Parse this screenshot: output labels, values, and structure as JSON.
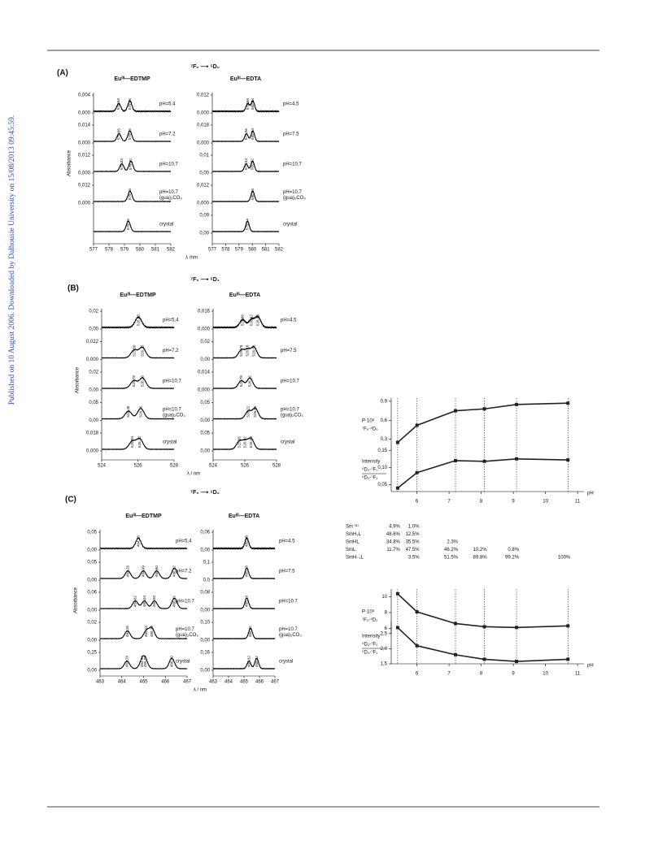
{
  "sidebar": "Published on 10 August 2006. Downloaded by Dalhousie University on 15/08/2013 09:45:59.",
  "panels": [
    {
      "label": "(A)",
      "transition": "⁷F₀ ⟶ ⁵D₀",
      "ylabel": "Absorbance",
      "xlabel": "λ /nm",
      "xticks": [
        577,
        578,
        579,
        580,
        581,
        582
      ],
      "left": {
        "title": "Euᴵᴵᴵ—EDTMP",
        "rows": [
          {
            "label": "pH=5.4",
            "yticks": [
              "0,004",
              "0,000"
            ],
            "peaks": [
              "578.63",
              "579.35"
            ]
          },
          {
            "label": "pH=7.2",
            "yticks": [
              "0,014",
              "0,000"
            ],
            "peaks": [
              "578.65",
              "579.35"
            ]
          },
          {
            "label": "pH=10.7",
            "yticks": [
              "0,012",
              "0,000"
            ],
            "peaks": [
              "578.83",
              "579.42"
            ]
          },
          {
            "label": "pH=10.7 (gua)₂CO₃",
            "yticks": [
              "0,012",
              "0,000"
            ],
            "peaks": [
              "579.36"
            ]
          },
          {
            "label": "crystal",
            "yticks": [],
            "peaks": [
              "579.25"
            ]
          }
        ]
      },
      "right": {
        "title": "Euᴵᴵᴵ—EDTA",
        "rows": [
          {
            "label": "pH=4.5",
            "yticks": [
              "0,012",
              "0,000"
            ],
            "peaks": [
              "579.66",
              "580.04"
            ]
          },
          {
            "label": "pH=7.5",
            "yticks": [
              "0,018",
              "0,000"
            ],
            "peaks": [
              "579.56",
              "580.04"
            ]
          },
          {
            "label": "pH=10.7",
            "yticks": [
              "0,01",
              "0,00"
            ],
            "peaks": [
              "579.54",
              "580.02"
            ]
          },
          {
            "label": "pH=10.7 (gua)₂CO₃",
            "yticks": [
              "0,012",
              "0,000"
            ],
            "peaks": [
              "580.03"
            ]
          },
          {
            "label": "crystal",
            "yticks": [
              "0,09",
              "0,00"
            ],
            "peaks": [
              "579.64"
            ]
          }
        ]
      }
    },
    {
      "label": "(B)",
      "transition": "⁷F₀ ⟶ ⁵D₁",
      "ylabel": "Absorbance",
      "xlabel": "λ / nm",
      "xticks": [
        524,
        526,
        528
      ],
      "left": {
        "title": "Euᴵᴵᴵ—EDTMP",
        "rows": [
          {
            "label": "pH=5.4",
            "yticks": [
              "0,02",
              "0,00"
            ],
            "peaks": [
              "526.03"
            ]
          },
          {
            "label": "pH=7.2",
            "yticks": [
              "0,022",
              "0,000"
            ],
            "peaks": [
              "525.80",
              "526.25"
            ]
          },
          {
            "label": "pH=10.7",
            "yticks": [
              "0,02",
              "0,00"
            ],
            "peaks": [
              "525.78",
              "526.26"
            ]
          },
          {
            "label": "pH=10.7 (gua)₂CO₃",
            "yticks": [
              "0,05",
              "0,00"
            ],
            "peaks": [
              "525.48",
              "526.16"
            ]
          },
          {
            "label": "crystal",
            "yticks": [
              "0,018",
              "0,000"
            ],
            "peaks": [
              "525.69",
              "526.10"
            ]
          }
        ]
      },
      "right": {
        "title": "Euᴵᴵᴵ—EDTA",
        "rows": [
          {
            "label": "pH=4.5",
            "yticks": [
              "0,016",
              "0,000"
            ],
            "peaks": [
              "525.86",
              "526.42",
              "526.83"
            ]
          },
          {
            "label": "pH=7.5",
            "yticks": [
              "0,02",
              "0,00"
            ],
            "peaks": [
              "525.78",
              "526.18",
              "526.58"
            ]
          },
          {
            "label": "pH=10.7",
            "yticks": [
              "0,014",
              "0,000"
            ],
            "peaks": [
              "525.78",
              "526.32"
            ]
          },
          {
            "label": "pH=10.7 (gua)₂CO₃",
            "yticks": [
              "0,05",
              "0,00"
            ],
            "peaks": [
              "526.22",
              "526.66"
            ]
          },
          {
            "label": "crystal",
            "yticks": [
              "0,05",
              "0,00"
            ],
            "peaks": [
              "525.65",
              "526.02",
              "526.40"
            ]
          }
        ]
      }
    },
    {
      "label": "(C)",
      "transition": "⁷F₀ ⟶ ⁵D₂",
      "ylabel": "Absorbance",
      "xlabel": "λ / nm",
      "xticks": [
        463,
        464,
        465,
        466,
        467
      ],
      "left": {
        "title": "Euᴵᴵᴵ—EDTMP",
        "rows": [
          {
            "label": "pH=5.4",
            "yticks": [
              "0,05",
              "0,00"
            ],
            "peaks": [
              "464.76"
            ]
          },
          {
            "label": "pH=7.2",
            "yticks": [
              "0,05",
              "0,00"
            ],
            "peaks": [
              "464.28",
              "464.99",
              "465.60",
              "466.42"
            ]
          },
          {
            "label": "pH=10.7",
            "yticks": [
              "0,06",
              "0,00"
            ],
            "peaks": [
              "464.62",
              "465.04",
              "465.50",
              "466.42"
            ]
          },
          {
            "label": "pH=10.7 (gua)₂CO₃",
            "yticks": [
              "0,02",
              "0,00"
            ],
            "peaks": [
              "464.26",
              "465.13",
              "465.38"
            ]
          },
          {
            "label": "crystal",
            "yticks": [
              "0,25",
              "0,00"
            ],
            "peaks": [
              "464.24",
              "464.94",
              "465.08",
              "466.30"
            ]
          }
        ]
      },
      "right": {
        "title": "Euᴵᴵᴵ—EDTA",
        "rows": [
          {
            "label": "pH=4.5",
            "yticks": [
              "0,06",
              "0,00"
            ],
            "peaks": [
              "465.18"
            ]
          },
          {
            "label": "pH=7.5",
            "yticks": [
              "0,1",
              "0,0"
            ],
            "peaks": [
              "465.18"
            ]
          },
          {
            "label": "pH=10.7",
            "yticks": [
              "0,08",
              "0,00"
            ],
            "peaks": [
              "465.18"
            ]
          },
          {
            "label": "pH=10.7 (gua)₂CO₃",
            "yticks": [
              "0,10",
              "0,00"
            ],
            "peaks": [
              "465.42"
            ]
          },
          {
            "label": "crystal",
            "yticks": [
              "0,16",
              "0,00"
            ],
            "peaks": [
              "465.32",
              "465.82"
            ]
          }
        ]
      }
    }
  ],
  "chart_data": [
    {
      "type": "line",
      "ylabel": [
        "P·10⁸",
        "⁷F₀-⁵D₀"
      ],
      "x": [
        5.4,
        6.0,
        7.2,
        8.1,
        9.1,
        10.7
      ],
      "values": [
        0.25,
        0.52,
        0.75,
        0.78,
        0.85,
        0.87
      ],
      "ylim": [
        0.18,
        0.95
      ],
      "yticks": [
        {
          "value": 0.3,
          "label": "0,3"
        },
        {
          "value": 0.6,
          "label": "0,6"
        },
        {
          "value": 0.9,
          "label": "0,9"
        }
      ],
      "xlim": [
        5.2,
        11.2
      ],
      "color": "#222"
    },
    {
      "type": "line",
      "ylabel": [
        "Intensity",
        "⁵D₀-⁷F₀",
        "⁵D₀-⁷F₁"
      ],
      "x": [
        5.4,
        6.0,
        7.2,
        8.1,
        9.1,
        10.7
      ],
      "values": [
        0.04,
        0.085,
        0.12,
        0.118,
        0.125,
        0.122
      ],
      "ylim": [
        0.03,
        0.16
      ],
      "yticks": [
        {
          "value": 0.05,
          "label": "0,05"
        },
        {
          "value": 0.1,
          "label": "0,10"
        },
        {
          "value": 0.15,
          "label": "0,15"
        }
      ],
      "xlim": [
        5.2,
        11.2
      ],
      "xticks": [
        6,
        7,
        8,
        9,
        10,
        11
      ],
      "xlabel": "pH",
      "color": "#222"
    },
    {
      "type": "line",
      "ylabel": [
        "P·10⁸",
        "⁷F₀-⁵D₂"
      ],
      "x": [
        5.4,
        6.0,
        7.2,
        8.1,
        9.1,
        10.7
      ],
      "values": [
        10.4,
        8.1,
        6.6,
        6.2,
        6.1,
        6.3
      ],
      "ylim": [
        5.3,
        11
      ],
      "yticks": [
        6,
        8,
        10
      ],
      "xlim": [
        5.2,
        11.2
      ],
      "color": "#222"
    },
    {
      "type": "line",
      "ylabel": [
        "Intensity",
        "⁵D₂-⁷F₀",
        "⁵D₀-⁷F₁"
      ],
      "x": [
        5.4,
        6.0,
        7.2,
        8.1,
        9.1,
        10.7
      ],
      "values": [
        2.7,
        2.1,
        1.8,
        1.65,
        1.58,
        1.65
      ],
      "ylim": [
        1.5,
        2.9
      ],
      "yticks": [
        {
          "value": 1.5,
          "label": "1,5"
        },
        {
          "value": 2,
          "label": "2,0"
        },
        {
          "value": 2.5,
          "label": "2,5"
        }
      ],
      "xlim": [
        5.2,
        11.2
      ],
      "xticks": [
        6,
        7,
        8,
        9,
        10,
        11
      ],
      "xlabel": "pH",
      "color": "#222"
    }
  ],
  "species_table": {
    "rows": [
      {
        "species": "Sm ⁽ᵃ⁾",
        "cells": [
          "4.9%",
          "1.0%",
          null,
          null,
          null,
          null
        ]
      },
      {
        "species": "SmH₂L",
        "cells": [
          "48.6%",
          "12.5%",
          null,
          null,
          null,
          null
        ]
      },
      {
        "species": "SmHL",
        "cells": [
          "34.8%",
          "35.5%",
          "2.3%",
          null,
          null,
          null
        ]
      },
      {
        "species": "SmL",
        "cells": [
          "11.7%",
          "47.5%",
          "46.2%",
          "10.2%",
          "0.8%",
          null
        ]
      },
      {
        "species": "SmH₋₁L",
        "cells": [
          null,
          "3.5%",
          "51.5%",
          "89.8%",
          "99.2%",
          "100%"
        ]
      }
    ]
  }
}
